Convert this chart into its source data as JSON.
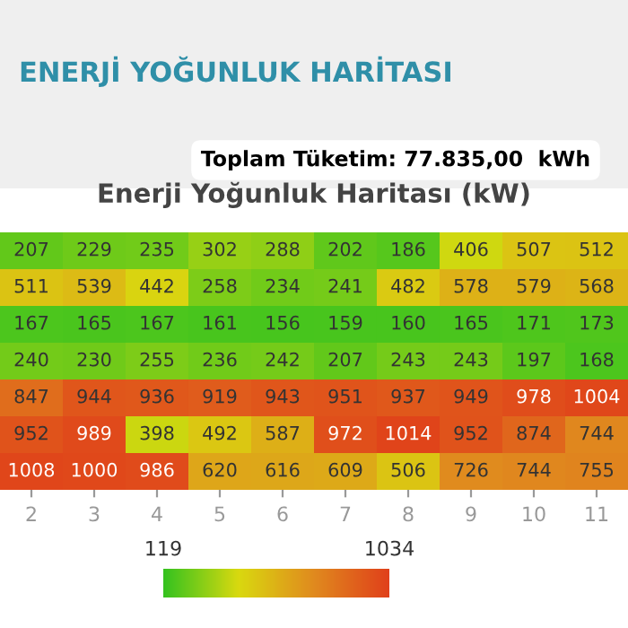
{
  "chart_data": {
    "type": "heatmap",
    "title": "Enerji Yoğunluk Haritası (kW)",
    "annotations": [
      "ENERJİ YOĞUNLUK HARİTASI",
      "Toplam Tüketim: 77.835,00  kWh"
    ],
    "categories": [
      "2",
      "3",
      "4",
      "5",
      "6",
      "7",
      "8",
      "9",
      "10",
      "11"
    ],
    "y_categories": [
      null,
      null,
      null,
      null,
      null,
      null,
      null
    ],
    "cells": [
      [
        207,
        229,
        235,
        302,
        288,
        202,
        186,
        406,
        507,
        512
      ],
      [
        511,
        539,
        442,
        258,
        234,
        241,
        482,
        578,
        579,
        568
      ],
      [
        167,
        165,
        167,
        161,
        156,
        159,
        160,
        165,
        171,
        173
      ],
      [
        240,
        230,
        255,
        236,
        242,
        207,
        243,
        243,
        197,
        168
      ],
      [
        847,
        944,
        936,
        919,
        943,
        951,
        937,
        949,
        978,
        1004
      ],
      [
        952,
        989,
        398,
        492,
        587,
        972,
        1014,
        952,
        874,
        744
      ],
      [
        1008,
        1000,
        986,
        620,
        616,
        609,
        506,
        726,
        744,
        755
      ]
    ],
    "colors": [
      "#33c21f",
      "#d9d90f",
      "#e08a1e",
      "#e0401a"
    ],
    "data_labels": true,
    "clim": [
      119,
      1034
    ],
    "cticks": [
      119,
      1034
    ]
  }
}
